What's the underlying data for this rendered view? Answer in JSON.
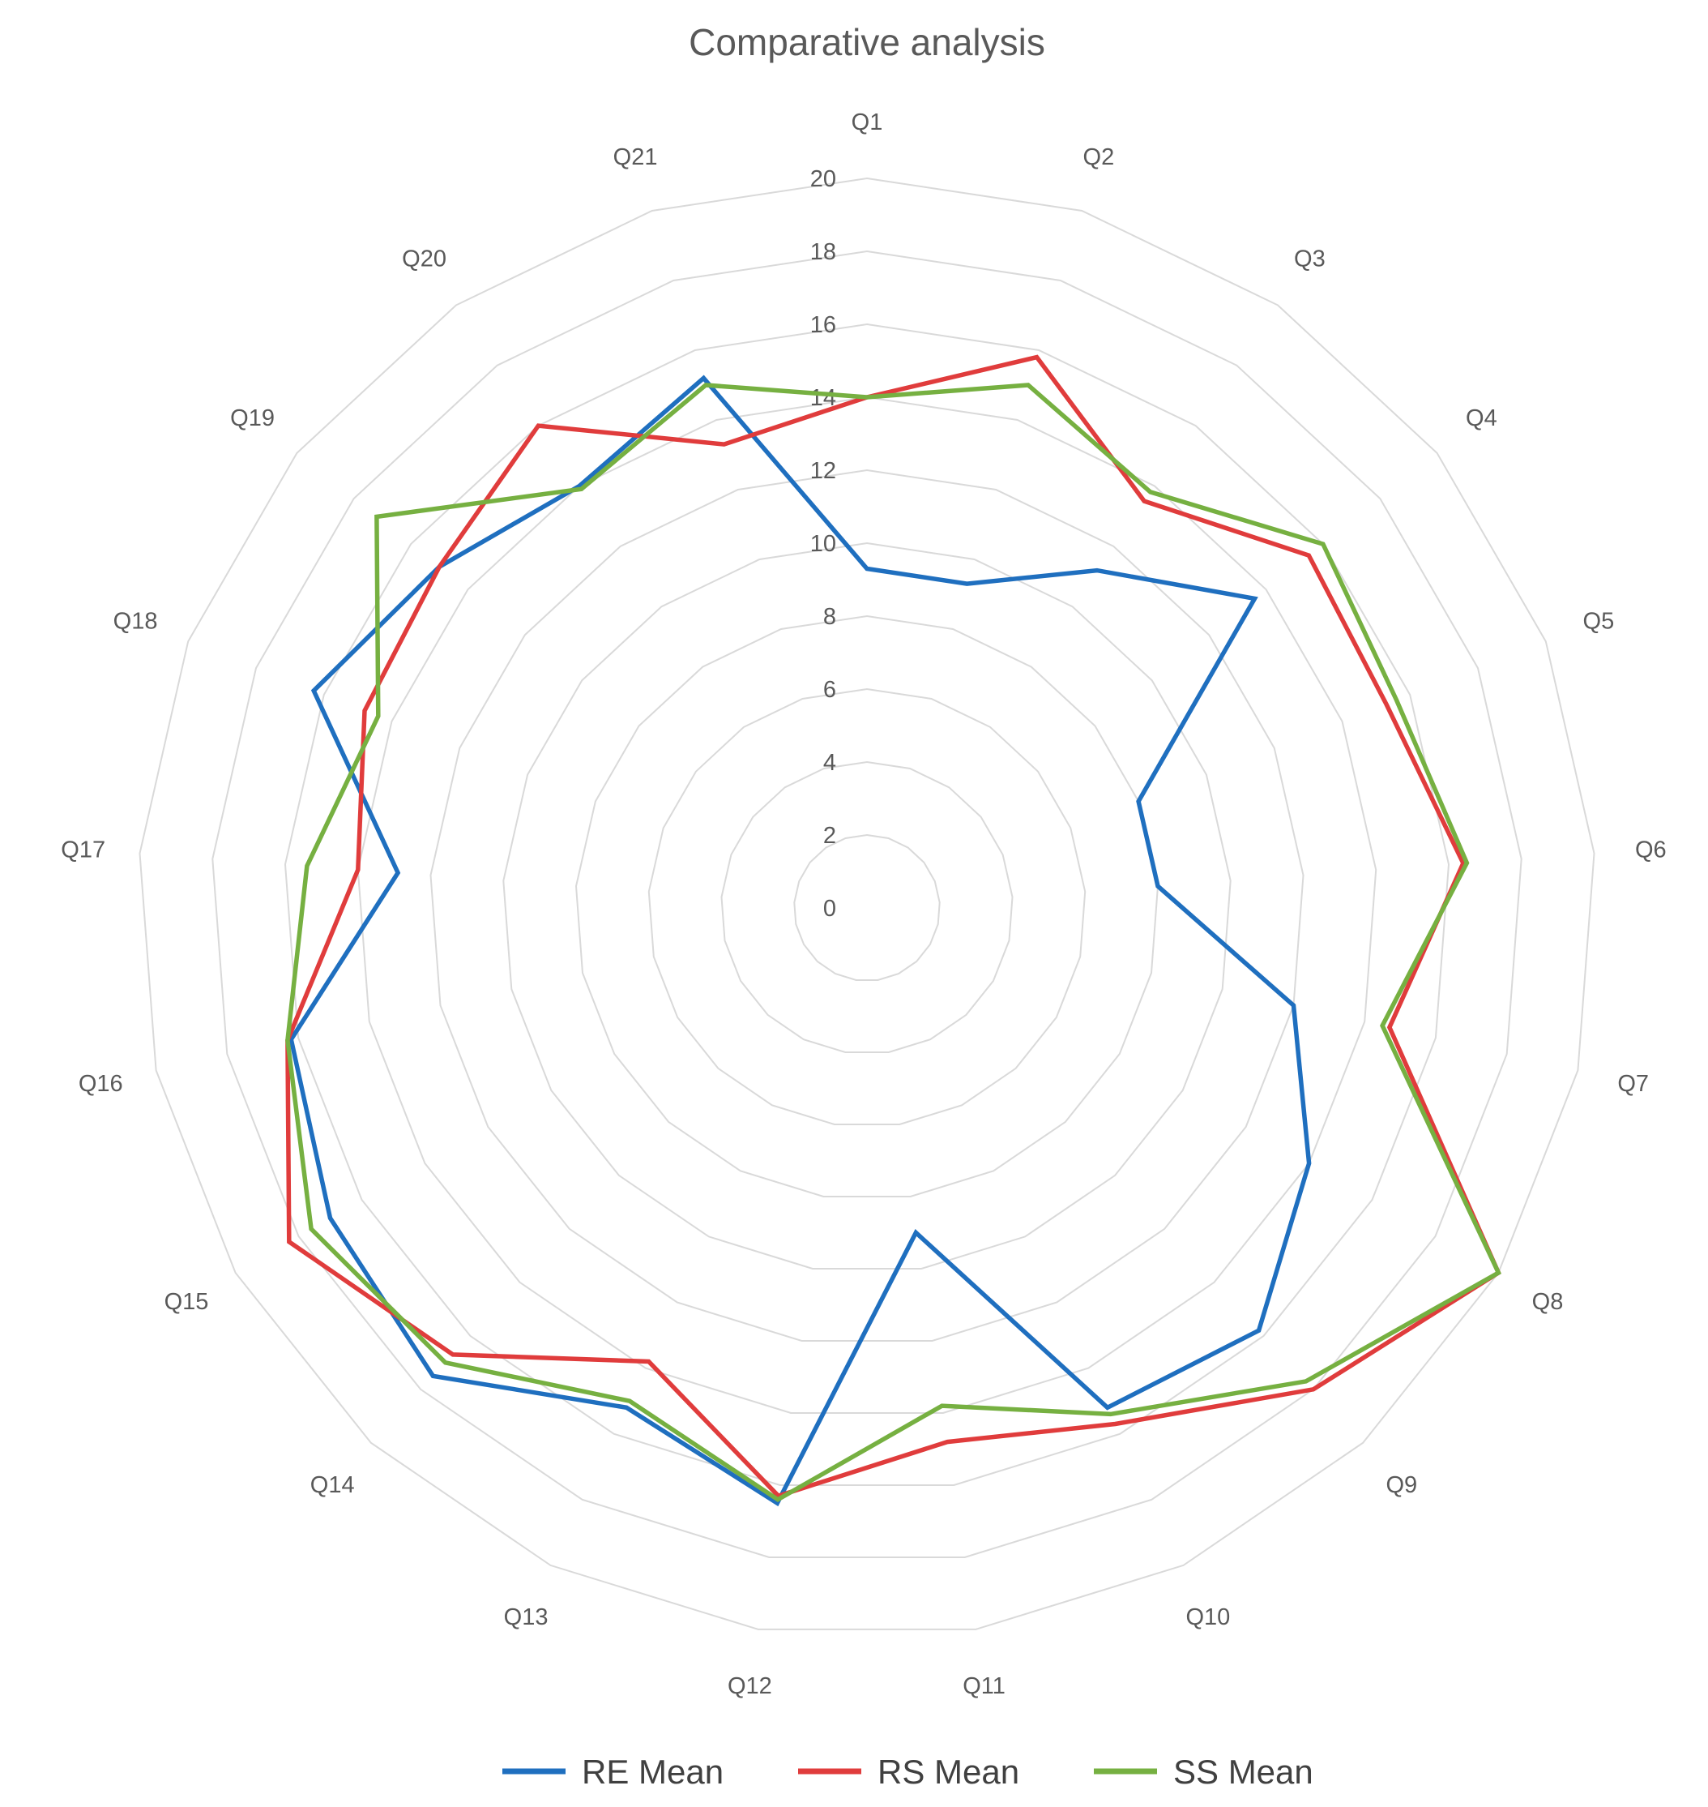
{
  "chart_data": {
    "type": "radar",
    "title": "Comparative analysis",
    "categories": [
      "Q1",
      "Q2",
      "Q3",
      "Q4",
      "Q5",
      "Q6",
      "Q7",
      "Q8",
      "Q9",
      "Q10",
      "Q11",
      "Q12",
      "Q13",
      "Q14",
      "Q15",
      "Q16",
      "Q17",
      "Q18",
      "Q19",
      "Q20",
      "Q21"
    ],
    "axis": {
      "min": 0,
      "max": 20,
      "step": 2,
      "ticks": [
        "0",
        "2",
        "4",
        "6",
        "8",
        "10",
        "12",
        "14",
        "16",
        "18",
        "20"
      ]
    },
    "grid": true,
    "legend": "bottom",
    "series": [
      {
        "name": "RE Mean",
        "color": "#1f6fbf",
        "values": [
          9.3,
          9.3,
          11.2,
          13.6,
          8.0,
          8.0,
          12.0,
          14.0,
          15.8,
          15.2,
          9.0,
          16.5,
          15.2,
          17.5,
          17.0,
          16.2,
          12.9,
          16.3,
          15.0,
          14.0,
          15.2
        ]
      },
      {
        "name": "RS Mean",
        "color": "#e03c3c",
        "values": [
          14.0,
          15.8,
          13.5,
          15.5,
          15.3,
          16.4,
          14.7,
          20.0,
          18.0,
          15.7,
          14.8,
          16.3,
          13.8,
          16.7,
          18.3,
          16.3,
          14.0,
          14.8,
          15.0,
          16.0,
          13.3
        ]
      },
      {
        "name": "SS Mean",
        "color": "#76b041",
        "values": [
          14.0,
          15.0,
          13.8,
          16.0,
          15.6,
          16.5,
          14.5,
          20.0,
          17.7,
          15.4,
          13.8,
          16.4,
          15.0,
          17.0,
          17.6,
          16.3,
          15.4,
          14.4,
          17.2,
          13.9,
          15.0
        ]
      }
    ]
  }
}
